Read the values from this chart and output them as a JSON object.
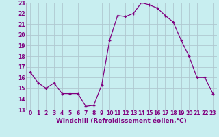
{
  "x": [
    0,
    1,
    2,
    3,
    4,
    5,
    6,
    7,
    8,
    9,
    10,
    11,
    12,
    13,
    14,
    15,
    16,
    17,
    18,
    19,
    20,
    21,
    22,
    23
  ],
  "y": [
    16.5,
    15.5,
    15.0,
    15.5,
    14.5,
    14.5,
    14.5,
    13.3,
    13.4,
    15.3,
    19.5,
    21.8,
    21.7,
    22.0,
    23.0,
    22.8,
    22.5,
    21.8,
    21.2,
    19.5,
    18.0,
    16.0,
    16.0,
    14.5
  ],
  "xlabel": "Windchill (Refroidissement éolien,°C)",
  "ylim": [
    13,
    23
  ],
  "xlim": [
    -0.5,
    23.5
  ],
  "yticks": [
    13,
    14,
    15,
    16,
    17,
    18,
    19,
    20,
    21,
    22,
    23
  ],
  "xticks": [
    0,
    1,
    2,
    3,
    4,
    5,
    6,
    7,
    8,
    9,
    10,
    11,
    12,
    13,
    14,
    15,
    16,
    17,
    18,
    19,
    20,
    21,
    22,
    23
  ],
  "line_color": "#800080",
  "marker_color": "#800080",
  "bg_color": "#c8eef0",
  "grid_color": "#b0c8d0",
  "tick_fontsize": 5.5,
  "xlabel_fontsize": 6.5
}
